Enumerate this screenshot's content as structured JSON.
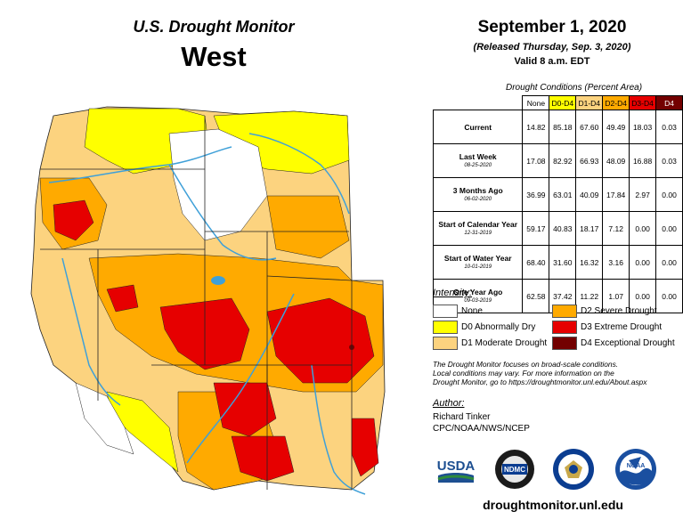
{
  "header": {
    "title": "U.S. Drought Monitor",
    "region": "West",
    "date": "September 1, 2020",
    "released": "(Released Thursday, Sep. 3, 2020)",
    "valid": "Valid 8 a.m. EDT"
  },
  "table": {
    "caption": "Drought Conditions (Percent Area)",
    "columns": [
      "None",
      "D0-D4",
      "D1-D4",
      "D2-D4",
      "D3-D4",
      "D4"
    ],
    "rows": [
      {
        "label": "Current",
        "sub": "",
        "values": [
          "14.82",
          "85.18",
          "67.60",
          "49.49",
          "18.03",
          "0.03"
        ]
      },
      {
        "label": "Last Week",
        "sub": "08-25-2020",
        "values": [
          "17.08",
          "82.92",
          "66.93",
          "48.09",
          "16.88",
          "0.03"
        ]
      },
      {
        "label": "3 Months Ago",
        "sub": "06-02-2020",
        "values": [
          "36.99",
          "63.01",
          "40.09",
          "17.84",
          "2.97",
          "0.00"
        ]
      },
      {
        "label": "Start of Calendar Year",
        "sub": "12-31-2019",
        "values": [
          "59.17",
          "40.83",
          "18.17",
          "7.12",
          "0.00",
          "0.00"
        ]
      },
      {
        "label": "Start of Water Year",
        "sub": "10-01-2019",
        "values": [
          "68.40",
          "31.60",
          "16.32",
          "3.16",
          "0.00",
          "0.00"
        ]
      },
      {
        "label": "One Year Ago",
        "sub": "09-03-2019",
        "values": [
          "62.58",
          "37.42",
          "11.22",
          "1.07",
          "0.00",
          "0.00"
        ]
      }
    ]
  },
  "legend": {
    "heading": "Intensity:",
    "items": [
      {
        "label": "None",
        "color": "#ffffff"
      },
      {
        "label": "D0 Abnormally Dry",
        "color": "#ffff00"
      },
      {
        "label": "D1 Moderate Drought",
        "color": "#fcd37f"
      },
      {
        "label": "D2 Severe Drought",
        "color": "#ffaa00"
      },
      {
        "label": "D3 Extreme Drought",
        "color": "#e60000"
      },
      {
        "label": "D4 Exceptional Drought",
        "color": "#730000"
      }
    ]
  },
  "note": {
    "line1": "The Drought Monitor focuses on broad-scale conditions.",
    "line2": "Local conditions may vary. For more information on the",
    "line3": "Drought Monitor, go to https://droughtmonitor.unl.edu/About.aspx"
  },
  "author": {
    "heading": "Author:",
    "name": "Richard Tinker",
    "org": "CPC/NOAA/NWS/NCEP"
  },
  "logos": {
    "usda": "USDA",
    "ndmc": "NDMC",
    "noaa": "NOAA"
  },
  "site": "droughtmonitor.unl.edu",
  "colors": {
    "none": "#ffffff",
    "d0": "#ffff00",
    "d1": "#fcd37f",
    "d2": "#ffaa00",
    "d3": "#e60000",
    "d4": "#730000",
    "river": "#3fa0d8"
  }
}
